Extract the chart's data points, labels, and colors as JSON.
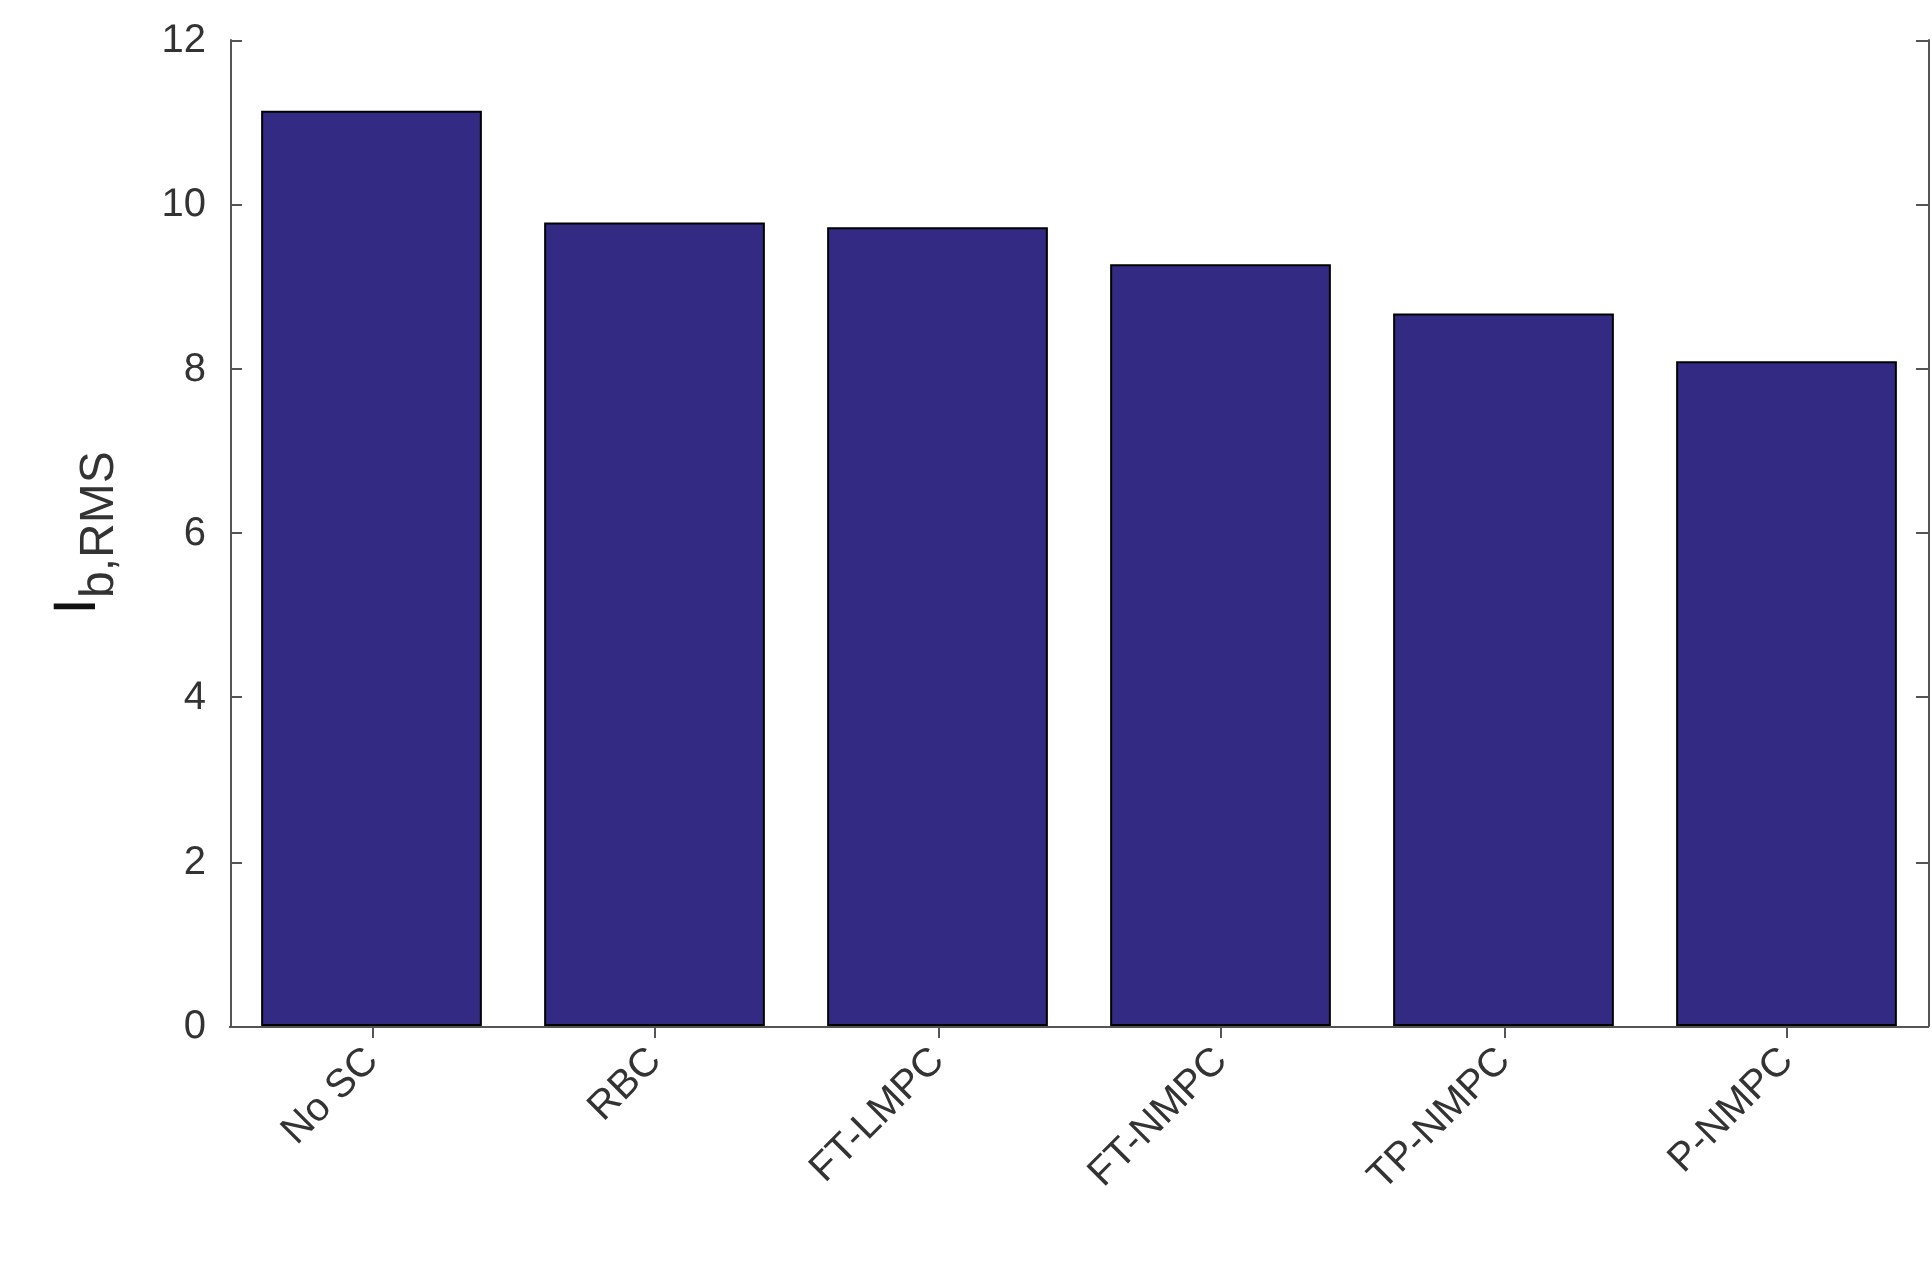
{
  "chart_data": {
    "type": "bar",
    "ylabel": "I$_{b,RMS}$",
    "categories": [
      "No SC",
      "RBC",
      "FT-LMPC",
      "FT-NMPC",
      "TP-NMPC",
      "P-NMPC"
    ],
    "values": [
      11.14,
      9.78,
      9.72,
      9.27,
      8.67,
      8.09
    ],
    "color": "#332a83",
    "ylim": [
      0,
      12
    ],
    "yticks": [
      0,
      2,
      4,
      6,
      8,
      10,
      12
    ],
    "grid": false
  }
}
